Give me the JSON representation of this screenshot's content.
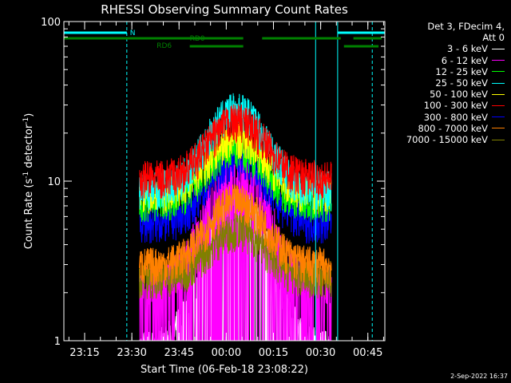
{
  "chart_data": {
    "type": "line",
    "title": "RHESSI Observing Summary Count Rates",
    "xlabel": "Start Time (06-Feb-18 23:08:22)",
    "ylabel_main": "Count Rate (s",
    "ylabel_sup1": "-1",
    "ylabel_mid": " detector",
    "ylabel_sup2": "-1",
    "ylabel_end": ")",
    "x_ticks": [
      "23:15",
      "23:30",
      "23:45",
      "00:00",
      "00:15",
      "00:30",
      "00:45"
    ],
    "y_ticks": [
      "1",
      "10",
      "100"
    ],
    "y_scale": "log",
    "ylim": [
      1,
      100
    ],
    "xlim_minutes_after_2308": [
      0,
      102
    ],
    "data_span_minutes": [
      24,
      85
    ],
    "peak_time_minutes": 55,
    "legend_header": [
      "Det 3, FDecim 4,",
      "Att 0"
    ],
    "series": [
      {
        "name": "3 - 6 keV",
        "color": "#ffffff",
        "base": 0.9,
        "peak": 7.5
      },
      {
        "name": "6 - 12 keV",
        "color": "#ff00ff",
        "base": 2.3,
        "peak": 12.0
      },
      {
        "name": "12 - 25 keV",
        "color": "#00ff00",
        "base": 7.5,
        "peak": 16.0
      },
      {
        "name": "25 - 50 keV",
        "color": "#00ffff",
        "base": 9.0,
        "peak": 28.0
      },
      {
        "name": "50 - 100 keV",
        "color": "#ffff00",
        "base": 8.5,
        "peak": 19.0
      },
      {
        "name": "100 - 300 keV",
        "color": "#ff0000",
        "base": 10.5,
        "peak": 24.0
      },
      {
        "name": "300 - 800 keV",
        "color": "#0000ff",
        "base": 5.5,
        "peak": 14.0
      },
      {
        "name": "800 - 7000 keV",
        "color": "#ff8000",
        "base": 3.0,
        "peak": 7.5
      },
      {
        "name": "7000 - 15000 keV",
        "color": "#808000",
        "base": 2.5,
        "peak": 5.0
      }
    ],
    "flags": {
      "N_label": "N",
      "RD0_label": "RD0",
      "RD6_label": "RD6",
      "N_color": "#00ffff",
      "RD_color": "#008000",
      "N_segments_minutes": [
        [
          0,
          20
        ],
        [
          87,
          102
        ]
      ],
      "RD0_segments_minutes": [
        [
          0,
          57
        ],
        [
          63,
          88
        ],
        [
          92,
          101
        ]
      ],
      "RD6_segments_minutes": [
        [
          40,
          57
        ],
        [
          89,
          100
        ]
      ],
      "eclipse_lines_minutes": [
        20,
        80,
        87,
        98
      ]
    }
  },
  "footer": {
    "date": "2-Sep-2022 16:37"
  }
}
